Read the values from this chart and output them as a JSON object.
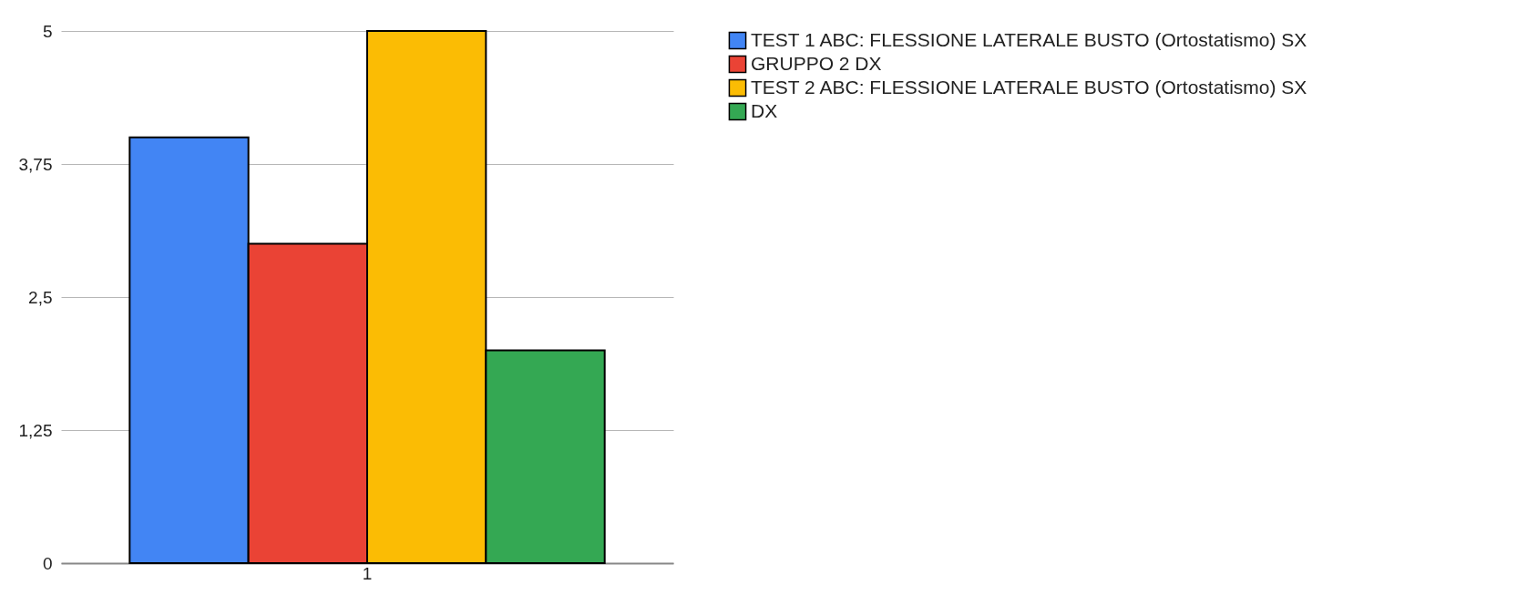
{
  "chart_data": {
    "type": "bar",
    "categories": [
      "1"
    ],
    "series": [
      {
        "name": "TEST 1 ABC: FLESSIONE LATERALE BUSTO (Ortostatismo) SX",
        "color": "#4285f4",
        "values": [
          4
        ]
      },
      {
        "name": "GRUPPO 2 DX",
        "color": "#ea4335",
        "values": [
          3
        ]
      },
      {
        "name": "TEST 2 ABC: FLESSIONE LATERALE BUSTO (Ortostatismo) SX",
        "color": "#fbbc04",
        "values": [
          5
        ]
      },
      {
        "name": "DX",
        "color": "#34a853",
        "values": [
          2
        ]
      }
    ],
    "ylim": [
      0,
      5
    ],
    "yticks": [
      0,
      {
        "value": 1.25,
        "label": "1,25"
      },
      {
        "value": 2.5,
        "label": "2,5"
      },
      {
        "value": 3.75,
        "label": "3,75"
      },
      5
    ],
    "grid": "y",
    "legend": "right"
  }
}
